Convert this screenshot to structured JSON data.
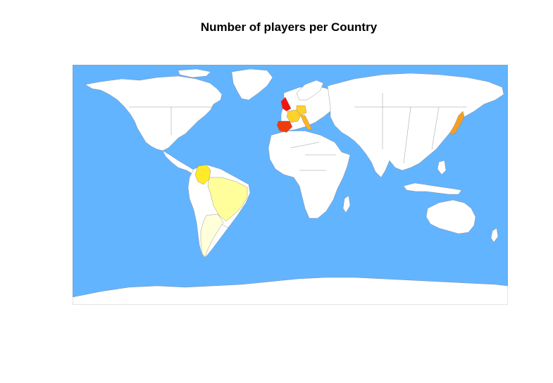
{
  "title": "Number of players per Country",
  "colors": {
    "ocean": "#63b4ff",
    "land": "#ffffff",
    "border": "#7f7f7f",
    "frame": "#9a9a9a"
  },
  "highlighted_countries": [
    {
      "name": "United Kingdom",
      "fill": "#f2140f"
    },
    {
      "name": "Spain",
      "fill": "#ee3c0c"
    },
    {
      "name": "France",
      "fill": "#ffd12b"
    },
    {
      "name": "Germany",
      "fill": "#ffd12b"
    },
    {
      "name": "Italy",
      "fill": "#ffb31f"
    },
    {
      "name": "Japan",
      "fill": "#f39e26"
    },
    {
      "name": "Colombia",
      "fill": "#ffea2a"
    },
    {
      "name": "Brazil",
      "fill": "#fffe9b"
    },
    {
      "name": "Argentina",
      "fill": "#ffffd9"
    }
  ]
}
